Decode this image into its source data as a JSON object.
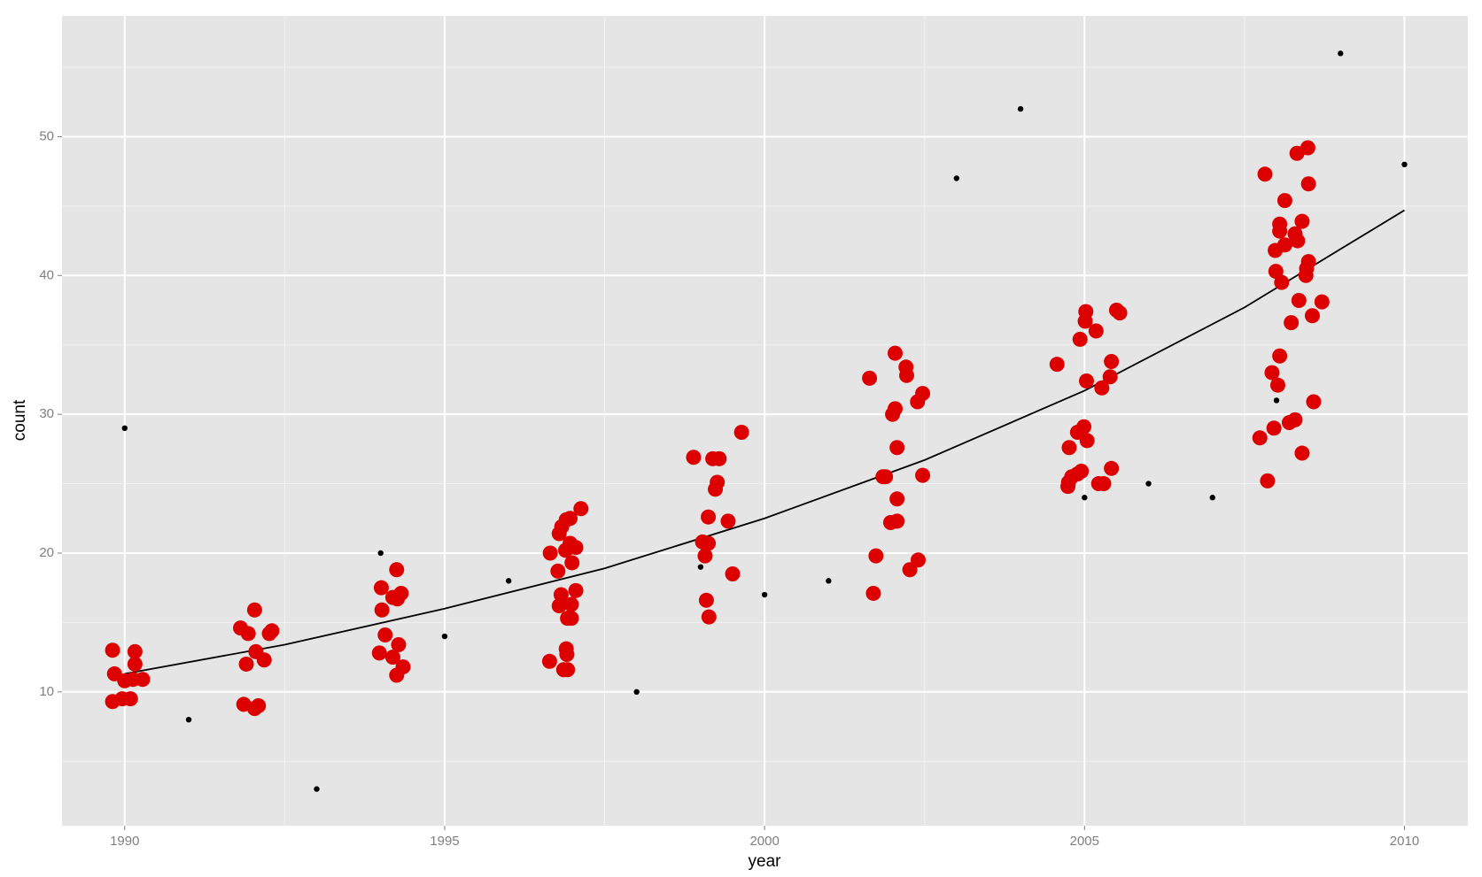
{
  "chart_data": {
    "type": "scatter",
    "x_label": "year",
    "y_label": "count",
    "xlim": [
      1989.02,
      2010.99
    ],
    "ylim": [
      0.36,
      58.7
    ],
    "xticks": [
      1990,
      1995,
      2000,
      2005,
      2010
    ],
    "yticks": [
      10,
      20,
      30,
      40,
      50
    ],
    "grid": true,
    "series": [
      {
        "type": "line",
        "color": "#000000",
        "x": [
          1990,
          1992.5,
          1995,
          1997.5,
          2000,
          2002.5,
          2005,
          2007.5,
          2010
        ],
        "values": [
          11.3,
          13.4,
          16.0,
          18.9,
          22.5,
          26.7,
          31.7,
          37.7,
          44.7
        ]
      },
      {
        "type": "scatter",
        "color": "#dd0000",
        "size": 8.5,
        "x": [
          1989.81,
          1989.84,
          1989.81,
          1989.96,
          1990.09,
          1990.0,
          1990.13,
          1990.28,
          1990.16,
          1990.16,
          1991.81,
          1991.93,
          1992.03,
          1992.05,
          1992.18,
          1991.9,
          1992.26,
          1992.3,
          1991.86,
          1992.03,
          1992.09,
          1994.01,
          1994.02,
          1994.25,
          1994.19,
          1994.26,
          1994.32,
          1994.07,
          1993.98,
          1994.19,
          1994.28,
          1994.35,
          1994.25,
          1996.65,
          1996.79,
          1996.83,
          1996.9,
          1996.96,
          1997.13,
          1996.89,
          1996.96,
          1997.05,
          1996.99,
          1996.77,
          1996.82,
          1997.05,
          1996.79,
          1996.98,
          1996.92,
          1996.98,
          1996.9,
          1996.91,
          1996.64,
          1996.86,
          1996.92,
          1998.89,
          1999.19,
          1999.29,
          1999.64,
          1999.26,
          1999.23,
          1999.12,
          1999.43,
          1999.03,
          1999.12,
          1999.07,
          1999.5,
          1999.09,
          1999.13,
          2001.64,
          2002.04,
          2002.21,
          2002.22,
          2002.47,
          2002.39,
          2002.04,
          2002.0,
          2002.07,
          2001.89,
          2001.85,
          2002.47,
          2002.07,
          2002.07,
          2001.97,
          2001.74,
          2002.4,
          2002.27,
          2001.7,
          2004.57,
          2005.02,
          2005.01,
          2004.93,
          2005.18,
          2005.5,
          2005.55,
          2005.03,
          2005.27,
          2005.4,
          2005.42,
          2004.99,
          2004.89,
          2005.04,
          2004.76,
          2004.95,
          2004.89,
          2004.8,
          2004.75,
          2004.74,
          2005.22,
          2005.3,
          2005.42,
          2007.82,
          2008.32,
          2008.49,
          2008.5,
          2008.13,
          2008.4,
          2008.05,
          2008.05,
          2008.29,
          2008.33,
          2008.13,
          2007.98,
          2008.5,
          2008.47,
          2008.46,
          2007.99,
          2008.08,
          2008.35,
          2008.71,
          2008.56,
          2008.23,
          2008.05,
          2007.93,
          2008.02,
          2008.58,
          2008.29,
          2008.2,
          2007.96,
          2007.74,
          2008.4,
          2007.86
        ],
        "values": [
          13.0,
          11.3,
          9.3,
          9.5,
          9.5,
          10.8,
          10.9,
          10.9,
          12.0,
          12.9,
          14.6,
          14.2,
          15.9,
          12.9,
          12.3,
          12.0,
          14.2,
          14.4,
          9.1,
          8.8,
          9.0,
          17.5,
          15.9,
          18.8,
          16.8,
          16.7,
          17.1,
          14.1,
          12.8,
          12.5,
          13.4,
          11.8,
          11.2,
          20.0,
          21.4,
          21.9,
          22.4,
          22.5,
          23.2,
          20.2,
          20.7,
          20.4,
          19.3,
          18.7,
          17.0,
          17.3,
          16.2,
          16.3,
          15.3,
          15.3,
          13.1,
          12.7,
          12.2,
          11.6,
          11.6,
          26.9,
          26.8,
          26.8,
          28.7,
          25.1,
          24.6,
          22.6,
          22.3,
          20.8,
          20.7,
          19.8,
          18.5,
          16.6,
          15.4,
          32.6,
          34.4,
          33.4,
          32.8,
          31.5,
          30.9,
          30.4,
          30.0,
          27.6,
          25.5,
          25.5,
          25.6,
          23.9,
          22.3,
          22.2,
          19.8,
          19.5,
          18.8,
          17.1,
          33.6,
          37.4,
          36.7,
          35.4,
          36.0,
          37.5,
          37.3,
          32.4,
          31.9,
          32.7,
          33.8,
          29.1,
          28.7,
          28.1,
          27.6,
          25.9,
          25.7,
          25.5,
          25.1,
          24.8,
          25.0,
          25.0,
          26.1,
          47.3,
          48.8,
          49.2,
          46.6,
          45.4,
          43.9,
          43.7,
          43.2,
          43.0,
          42.5,
          42.2,
          41.8,
          41.0,
          40.5,
          40.0,
          40.3,
          39.5,
          38.2,
          38.1,
          37.1,
          36.6,
          34.2,
          33.0,
          32.1,
          30.9,
          29.6,
          29.4,
          29.0,
          28.3,
          27.2,
          25.2
        ]
      },
      {
        "type": "scatter",
        "color": "#000000",
        "size": 3.2,
        "x": [
          1990,
          1991,
          1993,
          1994,
          1995,
          1996,
          1998,
          1999,
          2000,
          2001,
          2003,
          2004,
          2005,
          2006,
          2007,
          2008,
          2009,
          2010
        ],
        "values": [
          29,
          8,
          3,
          20,
          14,
          18,
          10,
          19,
          17,
          18,
          47,
          52,
          24,
          25,
          24,
          31,
          56,
          48
        ]
      }
    ]
  }
}
